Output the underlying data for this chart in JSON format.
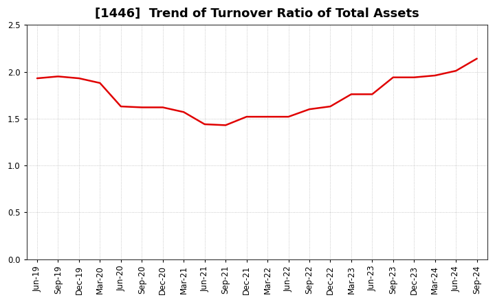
{
  "title": "[1446]  Trend of Turnover Ratio of Total Assets",
  "x_labels": [
    "Jun-19",
    "Sep-19",
    "Dec-19",
    "Mar-20",
    "Jun-20",
    "Sep-20",
    "Dec-20",
    "Mar-21",
    "Jun-21",
    "Sep-21",
    "Dec-21",
    "Mar-22",
    "Jun-22",
    "Sep-22",
    "Dec-22",
    "Mar-23",
    "Jun-23",
    "Sep-23",
    "Dec-23",
    "Mar-24",
    "Jun-24",
    "Sep-24"
  ],
  "y_values": [
    1.93,
    1.95,
    1.93,
    1.88,
    1.63,
    1.62,
    1.62,
    1.57,
    1.44,
    1.43,
    1.52,
    1.52,
    1.52,
    1.6,
    1.63,
    1.76,
    1.76,
    1.94,
    1.94,
    1.96,
    2.01,
    2.14
  ],
  "line_color": "#e00000",
  "line_width": 1.8,
  "ylim": [
    0.0,
    2.5
  ],
  "yticks": [
    0.0,
    0.5,
    1.0,
    1.5,
    2.0,
    2.5
  ],
  "background_color": "#ffffff",
  "grid_color": "#999999",
  "title_fontsize": 13,
  "tick_fontsize": 8.5
}
